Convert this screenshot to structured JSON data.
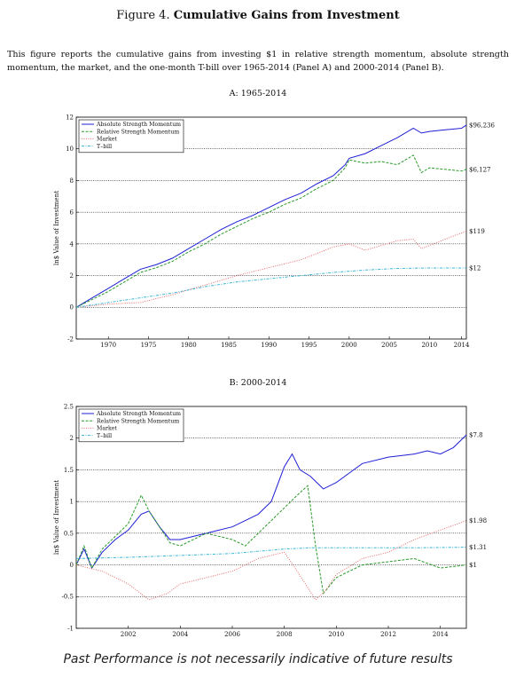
{
  "figure": {
    "label": "Figure 4.",
    "title": "Cumulative Gains from Investment",
    "caption": "This figure reports the cumulative gains from investing $1 in relative strength momentum, absolute strength momentum, the market, and the one-month T-bill over 1965-2014 (Panel A) and 2000-2014 (Panel B)."
  },
  "footer": "Past Performance is not necessarily indicative of future results",
  "colors": {
    "absolute": "#1f1fd6",
    "relative": "#2a9a2a",
    "market": "#e86a6a",
    "tbill": "#38b6d6"
  },
  "chart_data": [
    {
      "type": "line",
      "title": "A: 1965-2014",
      "ylabel": "ln$ Value of Investment",
      "xlim": [
        1966,
        2014.6
      ],
      "ylim": [
        -2,
        12
      ],
      "yticks": [
        -2,
        0,
        2,
        4,
        6,
        8,
        10,
        12
      ],
      "xticks": [
        1970,
        1975,
        1980,
        1985,
        1990,
        1995,
        2000,
        2005,
        2010,
        2014
      ],
      "grid": "horizontal dotted",
      "legend": "top-left",
      "series": [
        {
          "name": "Absolute Strength Momentum",
          "style": "solid",
          "color": "#1f1fd6",
          "x": [
            1966,
            1968,
            1970,
            1972,
            1974,
            1976,
            1978,
            1980,
            1982,
            1984,
            1986,
            1988,
            1990,
            1992,
            1994,
            1996,
            1998,
            1999.5,
            2000,
            2002,
            2004,
            2006,
            2008,
            2009,
            2010,
            2012,
            2014,
            2014.6
          ],
          "y": [
            0,
            0.6,
            1.2,
            1.8,
            2.4,
            2.7,
            3.1,
            3.7,
            4.3,
            4.9,
            5.4,
            5.8,
            6.3,
            6.8,
            7.2,
            7.8,
            8.3,
            9.0,
            9.4,
            9.7,
            10.2,
            10.7,
            11.3,
            11.0,
            11.1,
            11.2,
            11.3,
            11.5
          ],
          "end_label": "$96,236"
        },
        {
          "name": "Relative Strength Momentum",
          "style": "dashed",
          "color": "#2a9a2a",
          "x": [
            1966,
            1968,
            1970,
            1972,
            1974,
            1976,
            1978,
            1980,
            1982,
            1984,
            1986,
            1988,
            1990,
            1992,
            1994,
            1996,
            1998,
            1999.5,
            2000,
            2002,
            2004,
            2006,
            2008,
            2009,
            2010,
            2012,
            2014,
            2014.6
          ],
          "y": [
            0,
            0.5,
            1.0,
            1.6,
            2.2,
            2.5,
            2.9,
            3.5,
            4.0,
            4.6,
            5.1,
            5.6,
            6.0,
            6.5,
            6.9,
            7.5,
            8.0,
            8.8,
            9.3,
            9.1,
            9.2,
            9.0,
            9.6,
            8.5,
            8.8,
            8.7,
            8.6,
            8.7
          ],
          "end_label": "$6,127"
        },
        {
          "name": "Market",
          "style": "dotted",
          "color": "#e86a6a",
          "x": [
            1966,
            1970,
            1974,
            1978,
            1982,
            1986,
            1990,
            1994,
            1998,
            2000,
            2002,
            2004,
            2006,
            2008,
            2009,
            2011,
            2013,
            2014.6
          ],
          "y": [
            0,
            0.2,
            0.3,
            0.8,
            1.4,
            2.0,
            2.5,
            3.0,
            3.8,
            4.0,
            3.6,
            3.9,
            4.2,
            4.3,
            3.7,
            4.1,
            4.5,
            4.8
          ],
          "end_label": "$119"
        },
        {
          "name": "T–bill",
          "style": "dashdot",
          "color": "#38b6d6",
          "x": [
            1966,
            1970,
            1974,
            1978,
            1982,
            1986,
            1990,
            1994,
            1998,
            2002,
            2006,
            2010,
            2014.6
          ],
          "y": [
            0,
            0.3,
            0.6,
            0.9,
            1.3,
            1.6,
            1.8,
            2.0,
            2.2,
            2.35,
            2.45,
            2.48,
            2.48
          ],
          "end_label": "$12"
        }
      ]
    },
    {
      "type": "line",
      "title": "B: 2000-2014",
      "ylabel": "ln$ Value of Investment",
      "xlim": [
        2000,
        2015
      ],
      "ylim": [
        -1,
        2.5
      ],
      "yticks": [
        -1,
        -0.5,
        0,
        0.5,
        1,
        1.5,
        2,
        2.5
      ],
      "xticks": [
        2002,
        2004,
        2006,
        2008,
        2010,
        2012,
        2014
      ],
      "grid": "horizontal dotted",
      "legend": "top-left",
      "series": [
        {
          "name": "Absolute Strength Momentum",
          "style": "solid",
          "color": "#1f1fd6",
          "x": [
            2000,
            2000.3,
            2000.6,
            2001,
            2001.5,
            2002,
            2002.5,
            2002.8,
            2003.2,
            2003.6,
            2004,
            2005,
            2006,
            2006.5,
            2007,
            2007.5,
            2008,
            2008.3,
            2008.6,
            2009,
            2009.5,
            2010,
            2010.5,
            2011,
            2012,
            2013,
            2013.5,
            2014,
            2014.5,
            2015
          ],
          "y": [
            0,
            0.25,
            -0.05,
            0.2,
            0.4,
            0.55,
            0.8,
            0.85,
            0.6,
            0.4,
            0.4,
            0.5,
            0.6,
            0.7,
            0.8,
            1.0,
            1.55,
            1.75,
            1.5,
            1.4,
            1.2,
            1.3,
            1.45,
            1.6,
            1.7,
            1.75,
            1.8,
            1.75,
            1.85,
            2.05
          ],
          "end_label": "$7.8"
        },
        {
          "name": "Relative Strength Momentum",
          "style": "dashed",
          "color": "#2a9a2a",
          "x": [
            2000,
            2000.3,
            2000.6,
            2001,
            2001.5,
            2002,
            2002.5,
            2002.8,
            2003.2,
            2003.6,
            2004,
            2005,
            2006,
            2006.5,
            2007,
            2007.5,
            2008,
            2008.5,
            2008.9,
            2009.2,
            2009.5,
            2010,
            2010.5,
            2011,
            2012,
            2013,
            2014,
            2015
          ],
          "y": [
            0,
            0.3,
            -0.05,
            0.25,
            0.45,
            0.65,
            1.1,
            0.85,
            0.6,
            0.35,
            0.3,
            0.5,
            0.4,
            0.3,
            0.5,
            0.7,
            0.9,
            1.1,
            1.25,
            0.3,
            -0.45,
            -0.2,
            -0.1,
            0.0,
            0.05,
            0.1,
            -0.05,
            0.0
          ],
          "end_label": "$1"
        },
        {
          "name": "Market",
          "style": "dotted",
          "color": "#e86a6a",
          "x": [
            2000,
            2001,
            2002,
            2002.8,
            2003.5,
            2004,
            2005,
            2006,
            2007,
            2008,
            2008.5,
            2009.2,
            2009.6,
            2010,
            2011,
            2012,
            2013,
            2014,
            2015
          ],
          "y": [
            0,
            -0.1,
            -0.3,
            -0.55,
            -0.45,
            -0.3,
            -0.2,
            -0.1,
            0.1,
            0.2,
            -0.1,
            -0.55,
            -0.4,
            -0.15,
            0.1,
            0.2,
            0.4,
            0.55,
            0.7
          ],
          "end_label": "$1.98"
        },
        {
          "name": "T–bill",
          "style": "dashdot",
          "color": "#38b6d6",
          "x": [
            2000,
            2002,
            2004,
            2006,
            2008,
            2009,
            2011,
            2013,
            2015
          ],
          "y": [
            0.1,
            0.12,
            0.15,
            0.18,
            0.25,
            0.27,
            0.27,
            0.27,
            0.28
          ],
          "end_label": "$1.31"
        }
      ]
    }
  ]
}
